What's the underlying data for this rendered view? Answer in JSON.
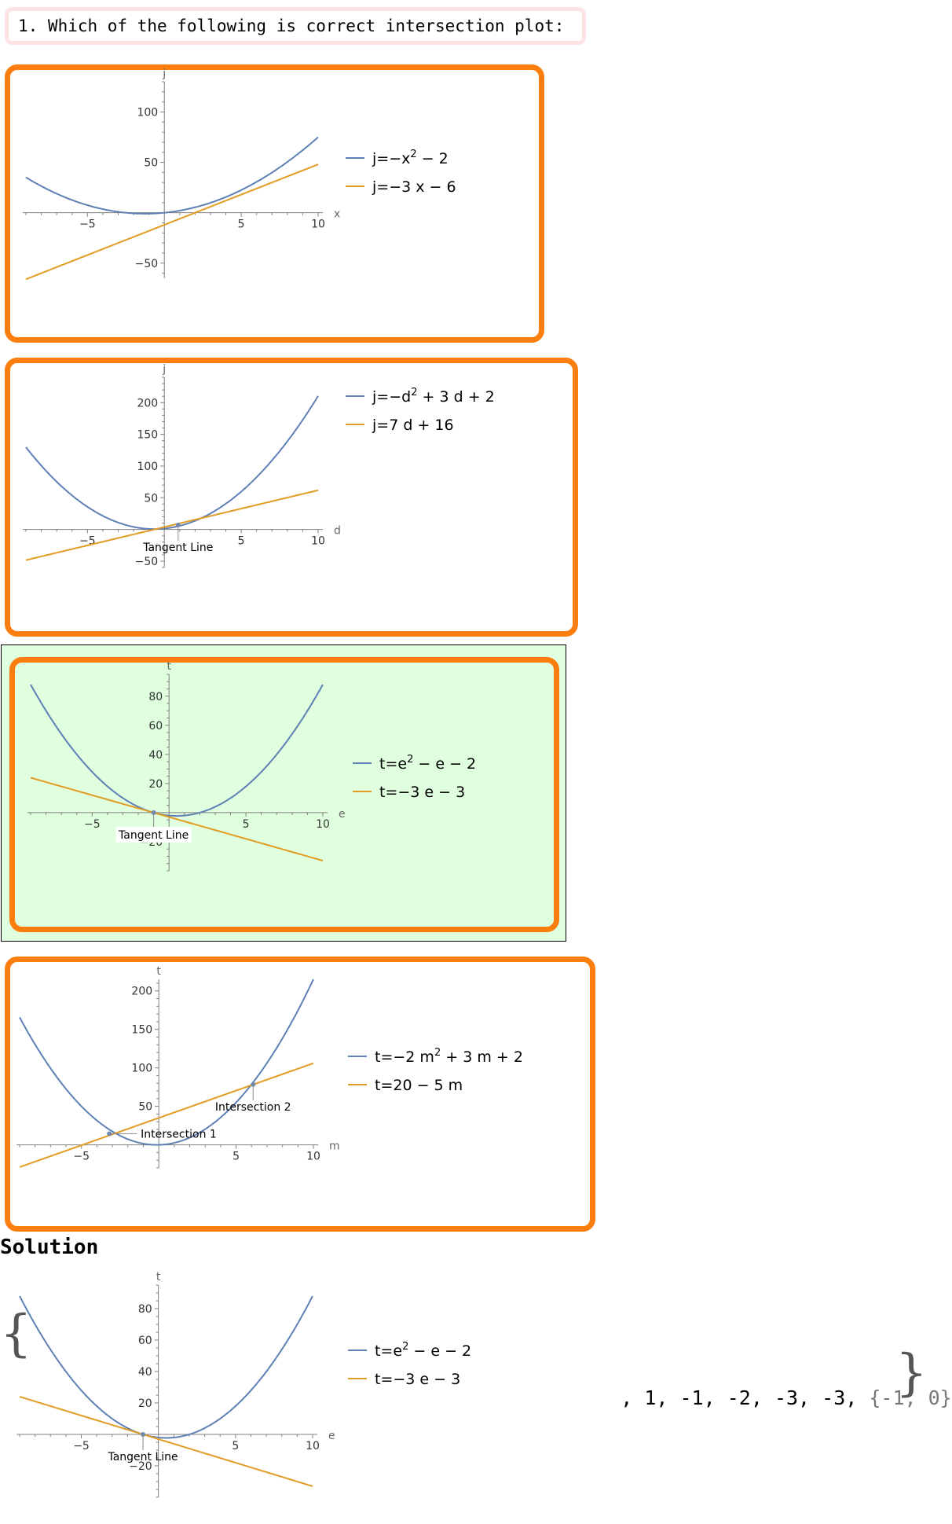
{
  "question": {
    "text": "1. Which of the following is correct intersection plot:"
  },
  "solution_label": "Solution",
  "colors": {
    "curve": "#5e81b5",
    "line": "#e19c24",
    "border": "#fb7e0e",
    "correct_bg": "#dfffdf",
    "axis": "#7f7f7f"
  },
  "chart_data": [
    {
      "id": "option-1",
      "type": "line",
      "xlabel": "x",
      "ylabel": "j",
      "xlim": [
        -9,
        10
      ],
      "ylim": [
        -65,
        130
      ],
      "xticks": [
        -5,
        5,
        10
      ],
      "yticks": [
        -50,
        50,
        100
      ],
      "xtick_labels": [
        "−5",
        "5",
        "10"
      ],
      "ytick_labels": [
        "−50",
        "50",
        "100"
      ],
      "legend_placement": "right",
      "series": [
        {
          "name": "j=−x² − 2",
          "legend_main": "j=−x",
          "legend_sup": "2",
          "legend_tail": " − 2",
          "role": "curve",
          "coef": [
            0.6,
            1.5,
            0
          ]
        },
        {
          "name": "j=−3 x − 6",
          "legend_main": "j=−3 x − 6",
          "role": "line",
          "coef": [
            0,
            6,
            -12
          ]
        }
      ],
      "annotations": []
    },
    {
      "id": "option-2",
      "type": "line",
      "xlabel": "d",
      "ylabel": "j",
      "xlim": [
        -9,
        10
      ],
      "ylim": [
        -60,
        240
      ],
      "xticks": [
        -5,
        5,
        10
      ],
      "yticks": [
        -50,
        50,
        100,
        150,
        200
      ],
      "xtick_labels": [
        "−5",
        "5",
        "10"
      ],
      "ytick_labels": [
        "−50",
        "50",
        "100",
        "150",
        "200"
      ],
      "legend_placement": "right",
      "series": [
        {
          "name": "j=−d² + 3 d + 2",
          "legend_main": "j=−d",
          "legend_sup": "2",
          "legend_tail": " + 3 d + 2",
          "role": "curve",
          "coef": [
            1.85,
            2.4,
            1.4
          ]
        },
        {
          "name": "j=7 d + 16",
          "legend_main": "j=7 d + 16",
          "role": "line",
          "coef": [
            0,
            5.8,
            3.8
          ]
        }
      ],
      "annotations": [
        {
          "text": "Tangent Line",
          "x": 0.9,
          "y": 7.0,
          "dir": "down",
          "bg": false
        }
      ]
    },
    {
      "id": "option-3",
      "type": "line",
      "xlabel": "e",
      "ylabel": "t",
      "xlim": [
        -9,
        10
      ],
      "ylim": [
        -40,
        95
      ],
      "xticks": [
        -5,
        5,
        10
      ],
      "yticks": [
        -20,
        20,
        40,
        60,
        80
      ],
      "xtick_labels": [
        "−5",
        "5",
        "10"
      ],
      "ytick_labels": [
        "−20",
        "20",
        "40",
        "60",
        "80"
      ],
      "legend_placement": "right",
      "series": [
        {
          "name": "t=e² − e − 2",
          "legend_main": "t=e",
          "legend_sup": "2",
          "legend_tail": " − e − 2",
          "role": "curve",
          "coef": [
            1,
            -1,
            -2
          ]
        },
        {
          "name": "t=−3 e − 3",
          "legend_main": "t=−3 e − 3",
          "role": "line",
          "coef": [
            0,
            -3,
            -3
          ]
        }
      ],
      "annotations": [
        {
          "text": "Tangent Line",
          "x": -1,
          "y": 0,
          "dir": "down",
          "bg": true
        }
      ]
    },
    {
      "id": "option-4",
      "type": "line",
      "xlabel": "m",
      "ylabel": "t",
      "xlim": [
        -9,
        10
      ],
      "ylim": [
        -30,
        215
      ],
      "xticks": [
        -5,
        5,
        10
      ],
      "yticks": [
        50,
        100,
        150,
        200
      ],
      "xtick_labels": [
        "−5",
        "5",
        "10"
      ],
      "ytick_labels": [
        "50",
        "100",
        "150",
        "200"
      ],
      "legend_placement": "right",
      "series": [
        {
          "name": "t=−2 m² + 3 m + 2",
          "legend_main": "t=−2 m",
          "legend_sup": "2",
          "legend_tail": " + 3 m + 2",
          "role": "curve",
          "coef": [
            2.1,
            0.5,
            0
          ]
        },
        {
          "name": "t=20 − 5 m",
          "legend_main": "t=20 − 5 m",
          "role": "line",
          "coef": [
            0,
            7.1,
            35
          ]
        }
      ],
      "annotations": [
        {
          "text": "Intersection 1",
          "x": -3.2,
          "y": 14.5,
          "dir": "right",
          "bg": false
        },
        {
          "text": "Intersection 2",
          "x": 6.1,
          "y": 78.4,
          "dir": "down",
          "bg": false
        }
      ]
    },
    {
      "id": "solution",
      "type": "line",
      "xlabel": "e",
      "ylabel": "t",
      "xlim": [
        -9,
        10
      ],
      "ylim": [
        -40,
        95
      ],
      "xticks": [
        -5,
        5,
        10
      ],
      "yticks": [
        -20,
        20,
        40,
        60,
        80
      ],
      "xtick_labels": [
        "−5",
        "5",
        "10"
      ],
      "ytick_labels": [
        "−20",
        "20",
        "40",
        "60",
        "80"
      ],
      "legend_placement": "right",
      "series": [
        {
          "name": "t=e² − e − 2",
          "legend_main": "t=e",
          "legend_sup": "2",
          "legend_tail": " − e − 2",
          "role": "curve",
          "coef": [
            1,
            -1,
            -2
          ]
        },
        {
          "name": "t=−3 e − 3",
          "legend_main": "t=−3 e − 3",
          "role": "line",
          "coef": [
            0,
            -3,
            -3
          ]
        }
      ],
      "annotations": [
        {
          "text": "Tangent Line",
          "x": -1,
          "y": 0,
          "dir": "down",
          "bg": false
        }
      ]
    }
  ],
  "solution_values": {
    "sep": ", ",
    "items": [
      "1",
      "-1",
      "-2",
      "-3",
      "-3"
    ],
    "pair": "{-1, 0}"
  }
}
